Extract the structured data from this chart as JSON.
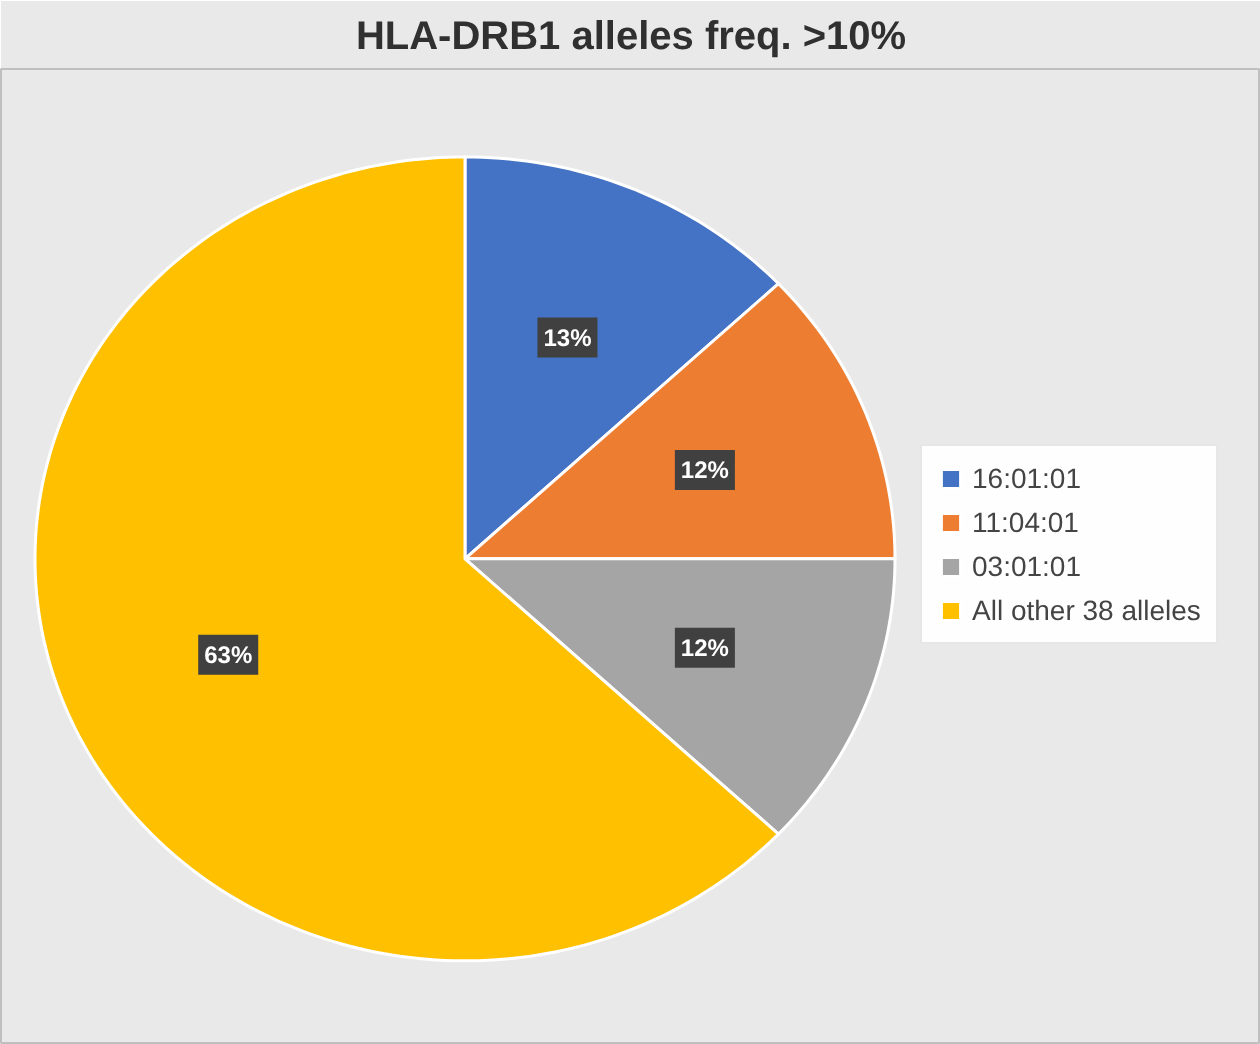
{
  "chart_data": {
    "type": "pie",
    "title": "HLA-DRB1 alleles freq. >10%",
    "categories": [
      "16:01:01",
      "11:04:01",
      "03:01:01",
      "All other 38 alleles"
    ],
    "values": [
      13,
      12,
      12,
      63
    ],
    "colors": [
      "#4472c4",
      "#ed7d31",
      "#a5a5a5",
      "#ffc000"
    ],
    "value_labels": [
      "13%",
      "12%",
      "12%",
      "63%"
    ],
    "legend": "right"
  }
}
